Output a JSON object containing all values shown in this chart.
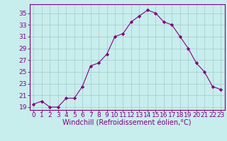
{
  "x": [
    0,
    1,
    2,
    3,
    4,
    5,
    6,
    7,
    8,
    9,
    10,
    11,
    12,
    13,
    14,
    15,
    16,
    17,
    18,
    19,
    20,
    21,
    22,
    23
  ],
  "y": [
    19.5,
    20.0,
    19.0,
    19.0,
    20.5,
    20.5,
    22.5,
    26.0,
    26.5,
    28.0,
    31.0,
    31.5,
    33.5,
    34.5,
    35.5,
    35.0,
    33.5,
    33.0,
    31.0,
    29.0,
    26.5,
    25.0,
    22.5,
    22.0
  ],
  "line_color": "#7f007f",
  "marker": "D",
  "marker_size": 2.2,
  "bg_color": "#c8eded",
  "grid_color": "#a8d0d0",
  "xlabel": "Windchill (Refroidissement éolien,°C)",
  "xlabel_color": "#7f007f",
  "tick_color": "#7f007f",
  "spine_color": "#7f007f",
  "ylim": [
    18.5,
    36.5
  ],
  "yticks": [
    19,
    21,
    23,
    25,
    27,
    29,
    31,
    33,
    35
  ],
  "xticks": [
    0,
    1,
    2,
    3,
    4,
    5,
    6,
    7,
    8,
    9,
    10,
    11,
    12,
    13,
    14,
    15,
    16,
    17,
    18,
    19,
    20,
    21,
    22,
    23
  ],
  "font_size": 6.5,
  "label_font_size": 7
}
